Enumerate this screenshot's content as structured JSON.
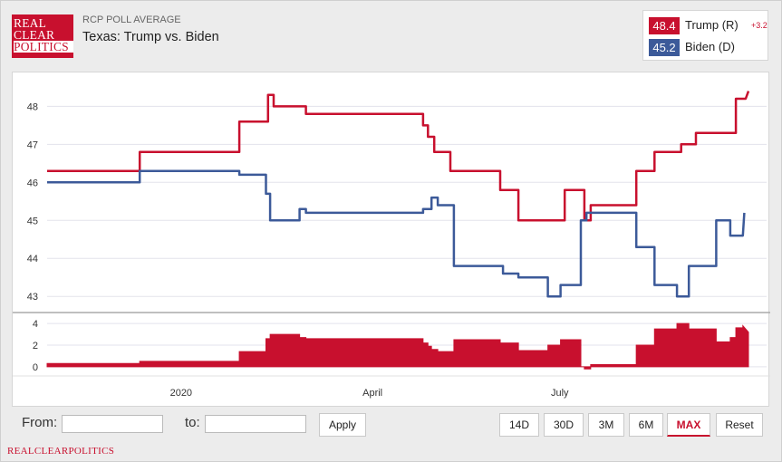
{
  "header": {
    "logo_lines": [
      "REAL",
      "CLEAR",
      "POLITICS"
    ],
    "subtitle": "RCP POLL AVERAGE",
    "title": "Texas: Trump vs. Biden"
  },
  "legend": [
    {
      "value": "48.4",
      "name": "Trump (R)",
      "change": "+3.2",
      "color": "#c8102e"
    },
    {
      "value": "45.2",
      "name": "Biden (D)",
      "change": "",
      "color": "#3c5a99"
    }
  ],
  "controls": {
    "from_label": "From:",
    "to_label": "to:",
    "from_value": "",
    "to_value": "",
    "apply_label": "Apply",
    "ranges": [
      "14D",
      "30D",
      "3M",
      "6M",
      "MAX",
      "Reset"
    ],
    "active_range": "MAX"
  },
  "footer": "REALCLEARPOLITICS",
  "chart_data": {
    "type": "line",
    "x_ticks": [
      "2020",
      "April",
      "July"
    ],
    "ylim": [
      42.6,
      48.7
    ],
    "yticks": [
      43,
      44,
      45,
      46,
      47,
      48
    ],
    "spread_ylim": [
      -0.6,
      4.6
    ],
    "spread_yticks": [
      0,
      2,
      4
    ],
    "x_range": [
      0,
      100
    ],
    "x_tick_positions": [
      19.1,
      46.4,
      73.1
    ],
    "grid": true,
    "legend_position": "top-right",
    "series": [
      {
        "name": "Trump (R)",
        "color": "#c8102e",
        "points": [
          [
            0,
            46.3
          ],
          [
            13.2,
            46.3
          ],
          [
            13.2,
            46.8
          ],
          [
            27.4,
            46.8
          ],
          [
            27.4,
            47.6
          ],
          [
            31.5,
            47.6
          ],
          [
            31.5,
            48.3
          ],
          [
            32.3,
            48.3
          ],
          [
            32.3,
            48.0
          ],
          [
            36.9,
            48.0
          ],
          [
            36.9,
            47.8
          ],
          [
            53.6,
            47.8
          ],
          [
            53.6,
            47.5
          ],
          [
            54.3,
            47.5
          ],
          [
            54.3,
            47.2
          ],
          [
            55.2,
            47.2
          ],
          [
            55.2,
            46.8
          ],
          [
            57.5,
            46.8
          ],
          [
            57.5,
            46.3
          ],
          [
            64.6,
            46.3
          ],
          [
            64.6,
            45.8
          ],
          [
            67.2,
            45.8
          ],
          [
            67.2,
            45.0
          ],
          [
            73.8,
            45.0
          ],
          [
            73.8,
            45.8
          ],
          [
            76.6,
            45.8
          ],
          [
            76.6,
            45.0
          ],
          [
            77.5,
            45.0
          ],
          [
            77.5,
            45.4
          ],
          [
            84.0,
            45.4
          ],
          [
            84.0,
            46.3
          ],
          [
            86.6,
            46.3
          ],
          [
            86.6,
            46.8
          ],
          [
            90.4,
            46.8
          ],
          [
            90.4,
            47.0
          ],
          [
            92.5,
            47.0
          ],
          [
            92.5,
            47.3
          ],
          [
            98.2,
            47.3
          ],
          [
            98.2,
            48.2
          ],
          [
            99.6,
            48.2
          ],
          [
            100,
            48.4
          ]
        ]
      },
      {
        "name": "Biden (D)",
        "color": "#3c5a99",
        "points": [
          [
            0,
            46.0
          ],
          [
            13.2,
            46.0
          ],
          [
            13.2,
            46.3
          ],
          [
            27.4,
            46.3
          ],
          [
            27.4,
            46.2
          ],
          [
            31.2,
            46.2
          ],
          [
            31.2,
            45.7
          ],
          [
            31.8,
            45.7
          ],
          [
            31.8,
            45.0
          ],
          [
            36.0,
            45.0
          ],
          [
            36.0,
            45.3
          ],
          [
            36.9,
            45.3
          ],
          [
            36.9,
            45.2
          ],
          [
            53.6,
            45.2
          ],
          [
            53.6,
            45.3
          ],
          [
            54.8,
            45.3
          ],
          [
            54.8,
            45.6
          ],
          [
            55.7,
            45.6
          ],
          [
            55.7,
            45.4
          ],
          [
            58.0,
            45.4
          ],
          [
            58.0,
            43.8
          ],
          [
            65.0,
            43.8
          ],
          [
            65.0,
            43.6
          ],
          [
            67.2,
            43.6
          ],
          [
            67.2,
            43.5
          ],
          [
            71.4,
            43.5
          ],
          [
            71.4,
            43.0
          ],
          [
            73.2,
            43.0
          ],
          [
            73.2,
            43.3
          ],
          [
            76.1,
            43.3
          ],
          [
            76.1,
            45.0
          ],
          [
            76.9,
            45.0
          ],
          [
            76.9,
            45.2
          ],
          [
            84.0,
            45.2
          ],
          [
            84.0,
            44.3
          ],
          [
            86.6,
            44.3
          ],
          [
            86.6,
            43.3
          ],
          [
            89.8,
            43.3
          ],
          [
            89.8,
            43.0
          ],
          [
            91.5,
            43.0
          ],
          [
            91.5,
            43.8
          ],
          [
            95.4,
            43.8
          ],
          [
            95.4,
            45.0
          ],
          [
            97.4,
            45.0
          ],
          [
            97.4,
            44.6
          ],
          [
            99.2,
            44.6
          ],
          [
            99.4,
            45.2
          ]
        ]
      }
    ],
    "spread": {
      "name": "Spread",
      "color": "#c8102e",
      "points": [
        [
          0,
          0.3
        ],
        [
          13.2,
          0.3
        ],
        [
          13.2,
          0.5
        ],
        [
          27.4,
          0.5
        ],
        [
          27.4,
          1.4
        ],
        [
          31.2,
          1.4
        ],
        [
          31.2,
          2.6
        ],
        [
          31.8,
          2.6
        ],
        [
          31.8,
          3.0
        ],
        [
          36.0,
          3.0
        ],
        [
          36.0,
          2.7
        ],
        [
          36.9,
          2.7
        ],
        [
          36.9,
          2.6
        ],
        [
          53.6,
          2.6
        ],
        [
          53.6,
          2.2
        ],
        [
          54.3,
          2.2
        ],
        [
          54.3,
          1.9
        ],
        [
          54.8,
          1.9
        ],
        [
          54.8,
          1.6
        ],
        [
          55.7,
          1.6
        ],
        [
          55.7,
          1.4
        ],
        [
          58.0,
          1.4
        ],
        [
          58.0,
          2.5
        ],
        [
          64.6,
          2.5
        ],
        [
          64.6,
          2.2
        ],
        [
          67.2,
          2.2
        ],
        [
          67.2,
          1.5
        ],
        [
          71.4,
          1.5
        ],
        [
          71.4,
          2.0
        ],
        [
          73.2,
          2.0
        ],
        [
          73.2,
          2.5
        ],
        [
          76.1,
          2.5
        ],
        [
          76.1,
          0.0
        ],
        [
          76.6,
          0.0
        ],
        [
          76.6,
          -0.2
        ],
        [
          77.5,
          -0.2
        ],
        [
          77.5,
          0.2
        ],
        [
          84.0,
          0.2
        ],
        [
          84.0,
          2.0
        ],
        [
          86.6,
          2.0
        ],
        [
          86.6,
          3.5
        ],
        [
          89.8,
          3.5
        ],
        [
          89.8,
          4.0
        ],
        [
          91.5,
          4.0
        ],
        [
          91.5,
          3.5
        ],
        [
          95.4,
          3.5
        ],
        [
          95.4,
          2.3
        ],
        [
          97.4,
          2.3
        ],
        [
          97.4,
          2.7
        ],
        [
          98.2,
          2.7
        ],
        [
          98.2,
          3.6
        ],
        [
          99.2,
          3.6
        ],
        [
          99.2,
          3.8
        ],
        [
          100,
          3.2
        ]
      ]
    }
  }
}
